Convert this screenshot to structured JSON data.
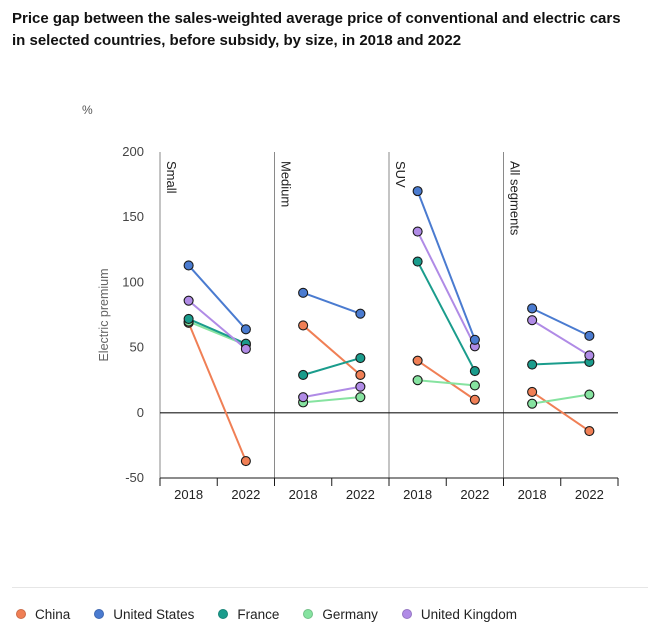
{
  "title": "Price gap between the sales-weighted average price of conventional and electric cars in selected countries, before subsidy, by size, in 2018 and 2022",
  "unit": "%",
  "colors": {
    "China": "#f07f55",
    "United States": "#4a7bd0",
    "France": "#1a9c8c",
    "Germany": "#86e3a0",
    "United Kingdom": "#b08be6"
  },
  "chart_data": {
    "type": "line",
    "ylabel": "Electric premium",
    "ylim": [
      -50,
      200
    ],
    "yticks": [
      -50,
      0,
      50,
      100,
      150,
      200
    ],
    "categories": [
      "2018",
      "2022"
    ],
    "grid": false,
    "legend_position": "bottom",
    "panels": [
      {
        "name": "Small",
        "series": [
          {
            "name": "China",
            "values": [
              69,
              -37
            ]
          },
          {
            "name": "United States",
            "values": [
              113,
              64
            ]
          },
          {
            "name": "France",
            "values": [
              72,
              53
            ]
          },
          {
            "name": "Germany",
            "values": [
              70,
              52
            ]
          },
          {
            "name": "United Kingdom",
            "values": [
              86,
              49
            ]
          }
        ]
      },
      {
        "name": "Medium",
        "series": [
          {
            "name": "China",
            "values": [
              67,
              29
            ]
          },
          {
            "name": "United States",
            "values": [
              92,
              76
            ]
          },
          {
            "name": "France",
            "values": [
              29,
              42
            ]
          },
          {
            "name": "Germany",
            "values": [
              8,
              12
            ]
          },
          {
            "name": "United Kingdom",
            "values": [
              12,
              20
            ]
          }
        ]
      },
      {
        "name": "SUV",
        "series": [
          {
            "name": "China",
            "values": [
              40,
              10
            ]
          },
          {
            "name": "United States",
            "values": [
              170,
              56
            ]
          },
          {
            "name": "France",
            "values": [
              116,
              32
            ]
          },
          {
            "name": "Germany",
            "values": [
              25,
              21
            ]
          },
          {
            "name": "United Kingdom",
            "values": [
              139,
              51
            ]
          }
        ]
      },
      {
        "name": "All segments",
        "series": [
          {
            "name": "China",
            "values": [
              16,
              -14
            ]
          },
          {
            "name": "United States",
            "values": [
              80,
              59
            ]
          },
          {
            "name": "France",
            "values": [
              37,
              39
            ]
          },
          {
            "name": "Germany",
            "values": [
              7,
              14
            ]
          },
          {
            "name": "United Kingdom",
            "values": [
              71,
              44
            ]
          }
        ]
      }
    ]
  },
  "legend": [
    "China",
    "United States",
    "France",
    "Germany",
    "United Kingdom"
  ]
}
